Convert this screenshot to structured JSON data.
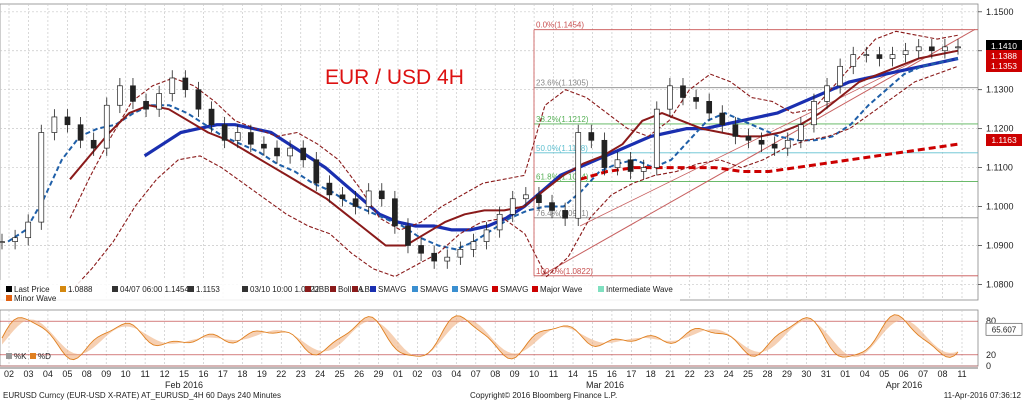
{
  "chart_data": {
    "type": "line",
    "title": "EUR / USD 4H",
    "ylim": [
      1.076,
      1.152
    ],
    "y_ticks": [
      "1.1500",
      "1.1400",
      "1.1300",
      "1.1200",
      "1.1100",
      "1.1000",
      "1.0900",
      "1.0800"
    ],
    "month_labels": [
      "Feb 2016",
      "Mar 2016",
      "Apr 2016"
    ],
    "x_ticks": [
      "02",
      "03",
      "04",
      "05",
      "08",
      "09",
      "10",
      "11",
      "12",
      "15",
      "16",
      "17",
      "18",
      "19",
      "22",
      "23",
      "24",
      "25",
      "26",
      "29",
      "01",
      "02",
      "03",
      "04",
      "07",
      "08",
      "09",
      "10",
      "11",
      "14",
      "15",
      "16",
      "17",
      "18",
      "21",
      "22",
      "23",
      "24",
      "25",
      "28",
      "29",
      "30",
      "31",
      "01",
      "04",
      "05",
      "06",
      "07",
      "08",
      "11"
    ],
    "price_badges": [
      {
        "text": "1.1410",
        "color": "#000000"
      },
      {
        "text": "1.1388",
        "color": "#cc0000"
      },
      {
        "text": "1.1353",
        "color": "#cc0000"
      },
      {
        "text": "1.1163",
        "color": "#cc0000"
      }
    ],
    "fib_levels": [
      {
        "label": "0.0%(1.1454)",
        "value": 1.1454
      },
      {
        "label": "23.6%(1.1305)",
        "value": 1.1305
      },
      {
        "label": "38.2%(1.1212)",
        "value": 1.1212
      },
      {
        "label": "50.0%(1.1138)",
        "value": 1.1138
      },
      {
        "label": "61.8%(1.1064)",
        "value": 1.1064
      },
      {
        "label": "76.4%(1.0971)",
        "value": 1.0971
      },
      {
        "label": "100.0%(1.0822)",
        "value": 1.0822
      }
    ],
    "legend_row1": [
      "Last Price",
      "1.0888",
      "04/07 06:00 1.1454",
      "1.1153",
      "03/10 10:00 1.0822",
      "UBB",
      "BollMA",
      "LBB",
      "SMAVG",
      "SMAVG",
      "SMAVG",
      "SMAVG",
      "Major Wave",
      "Intermediate Wave"
    ],
    "legend_row2": [
      "Minor Wave"
    ],
    "legend_colors": [
      "#000000",
      "#d4880f",
      "#333333",
      "#333333",
      "#333333",
      "#8a1a1a",
      "#8a1a1a",
      "#8a1a1a",
      "#1a2fb0",
      "#3a8fd0",
      "#3a8fd0",
      "#cc0000",
      "#cc0000",
      "#7fe0c0"
    ],
    "series": [
      {
        "name": "Last Price",
        "color": "#000000",
        "values": [
          1.091,
          1.092,
          1.096,
          1.119,
          1.123,
          1.121,
          1.117,
          1.115,
          1.126,
          1.131,
          1.127,
          1.125,
          1.129,
          1.133,
          1.13,
          1.125,
          1.121,
          1.117,
          1.119,
          1.116,
          1.115,
          1.113,
          1.115,
          1.112,
          1.106,
          1.103,
          1.102,
          1.1,
          1.104,
          1.102,
          1.095,
          1.09,
          1.088,
          1.086,
          1.087,
          1.089,
          1.091,
          1.094,
          1.098,
          1.102,
          1.103,
          1.101,
          1.099,
          1.097,
          1.119,
          1.117,
          1.11,
          1.112,
          1.109,
          1.11,
          1.125,
          1.131,
          1.128,
          1.127,
          1.124,
          1.121,
          1.118,
          1.117,
          1.116,
          1.115,
          1.117,
          1.121,
          1.127,
          1.131,
          1.136,
          1.139,
          1.139,
          1.138,
          1.139,
          1.14,
          1.141,
          1.14,
          1.141,
          1.141
        ]
      },
      {
        "name": "SMAVG",
        "color": "#1a2fb0",
        "values": [
          null,
          null,
          null,
          null,
          null,
          null,
          null,
          null,
          1.113,
          1.116,
          1.119,
          1.12,
          1.121,
          1.121,
          1.12,
          1.119,
          1.116,
          1.113,
          1.11,
          1.106,
          1.102,
          1.098,
          1.096,
          1.095,
          1.095,
          1.094,
          1.094,
          1.095,
          1.097,
          1.1,
          1.104,
          1.108,
          1.11,
          1.112,
          1.114,
          1.116,
          1.118,
          1.119,
          1.12,
          1.12,
          1.121,
          1.122,
          1.123,
          1.124,
          1.126,
          1.128,
          1.13,
          1.132,
          1.133,
          1.134,
          1.135,
          1.136,
          1.137,
          1.138
        ]
      },
      {
        "name": "SMAVG",
        "color": "#1f5fa8",
        "values": [
          1.091,
          1.094,
          1.102,
          1.112,
          1.118,
          1.12,
          1.121,
          1.124,
          1.126,
          1.126,
          1.124,
          1.121,
          1.118,
          1.116,
          1.114,
          1.111,
          1.109,
          1.106,
          1.104,
          1.101,
          1.099,
          1.097,
          1.095,
          1.092,
          1.09,
          1.089,
          1.091,
          1.094,
          1.097,
          1.099,
          1.1,
          1.1,
          1.104,
          1.109,
          1.111,
          1.112,
          1.11,
          1.112,
          1.117,
          1.122,
          1.124,
          1.122,
          1.12,
          1.118,
          1.117,
          1.117,
          1.118,
          1.121,
          1.126,
          1.13,
          1.134,
          1.136,
          1.137,
          1.138
        ]
      },
      {
        "name": "BollMA",
        "color": "#8a1a1a",
        "values": [
          1.107,
          1.113,
          1.119,
          1.124,
          1.126,
          1.125,
          1.122,
          1.119,
          1.117,
          1.114,
          1.111,
          1.108,
          1.105,
          1.102,
          1.098,
          1.094,
          1.09,
          1.09,
          1.093,
          1.096,
          1.098,
          1.099,
          1.099,
          1.1,
          1.104,
          1.108,
          1.111,
          1.113,
          1.116,
          1.122,
          1.124,
          1.122,
          1.12,
          1.119,
          1.118,
          1.118,
          1.119,
          1.121,
          1.124,
          1.128,
          1.132,
          1.134,
          1.136,
          1.138,
          1.139,
          1.14
        ]
      },
      {
        "name": "UBB",
        "color": "#8a1a1a",
        "values": [
          1.097,
          1.108,
          1.118,
          1.127,
          1.131,
          1.133,
          1.131,
          1.127,
          1.122,
          1.12,
          1.118,
          1.119,
          1.116,
          1.112,
          1.105,
          1.097,
          1.094,
          1.096,
          1.1,
          1.103,
          1.106,
          1.107,
          1.108,
          1.126,
          1.13,
          1.128,
          1.124,
          1.12,
          1.118,
          1.122,
          1.13,
          1.134,
          1.132,
          1.128,
          1.127,
          1.124,
          1.125,
          1.131,
          1.137,
          1.143,
          1.145,
          1.144,
          1.143,
          1.144
        ]
      },
      {
        "name": "LBB",
        "color": "#8a1a1a",
        "values": [
          1.078,
          1.084,
          1.091,
          1.1,
          1.107,
          1.112,
          1.113,
          1.11,
          1.106,
          1.102,
          1.098,
          1.095,
          1.093,
          1.088,
          1.084,
          1.082,
          1.085,
          1.088,
          1.093,
          1.096,
          1.097,
          1.093,
          1.082,
          1.087,
          1.097,
          1.103,
          1.106,
          1.108,
          1.109,
          1.111,
          1.112,
          1.11,
          1.112,
          1.115,
          1.117,
          1.118,
          1.12,
          1.124,
          1.128,
          1.132,
          1.134,
          1.136
        ]
      },
      {
        "name": "Major Wave",
        "color": "#cc0000",
        "values": [
          1.107,
          1.109,
          1.11,
          1.11,
          1.11,
          1.11,
          1.109,
          1.109,
          1.11,
          1.111,
          1.112,
          1.113,
          1.114,
          1.115,
          1.116
        ]
      }
    ],
    "oscillator": {
      "values": [
        1,
        0,
        20,
        80
      ],
      "label": "65.607",
      "ylabels": [
        "80",
        "20",
        "0"
      ],
      "legend": [
        "%K",
        "%D"
      ]
    },
    "footer_left": "EURUSD Curncy (EUR-USD X-RATE) AT_EURUSD_4H 60 Days 240 Minutes",
    "footer_center": "Copyright© 2016 Bloomberg Finance L.P.",
    "footer_right": "11-Apr-2016 07:36:12"
  }
}
